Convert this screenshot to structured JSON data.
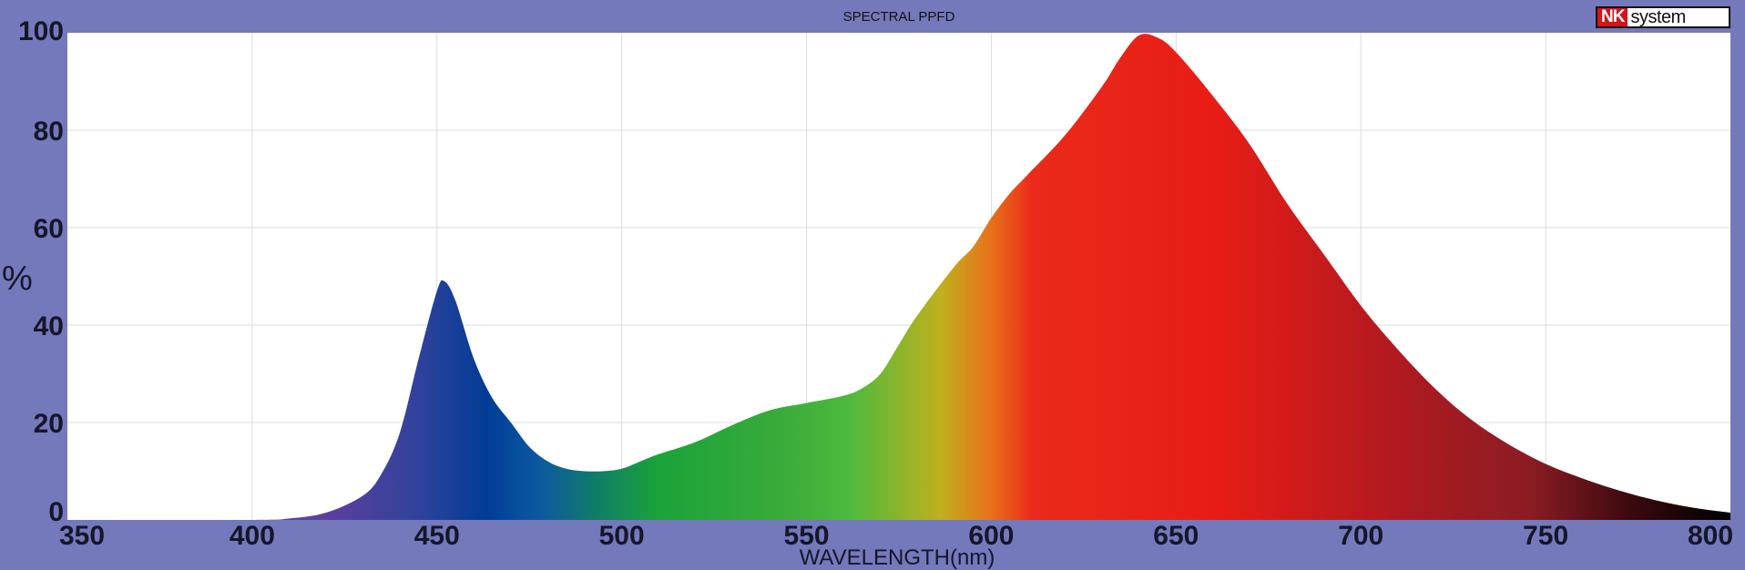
{
  "chart_data": {
    "type": "area",
    "title": "SPECTRAL PPFD",
    "xlabel": "WAVELENGTH(nm)",
    "ylabel": "%",
    "xlim": [
      350,
      800
    ],
    "ylim": [
      0,
      100
    ],
    "x_ticks": [
      "350",
      "400",
      "450",
      "500",
      "550",
      "600",
      "650",
      "700",
      "750",
      "800"
    ],
    "y_ticks": [
      "0",
      "20",
      "40",
      "60",
      "80",
      "100"
    ],
    "grid": true,
    "fill": "visible-spectrum gradient",
    "series": [
      {
        "x": [
          350,
          400,
          410,
          420,
          430,
          435,
          440,
          445,
          450,
          452,
          455,
          460,
          465,
          470,
          475,
          480,
          485,
          490,
          495,
          500,
          505,
          510,
          520,
          530,
          540,
          550,
          560,
          565,
          570,
          575,
          580,
          590,
          595,
          600,
          605,
          610,
          620,
          630,
          635,
          640,
          645,
          650,
          660,
          670,
          680,
          690,
          700,
          710,
          720,
          730,
          740,
          750,
          760,
          770,
          780,
          790,
          800
        ],
        "y": [
          0,
          0,
          0.3,
          1.5,
          5,
          9.5,
          18,
          33,
          47,
          49,
          45,
          33,
          25,
          20,
          15,
          12,
          10.5,
          10,
          10,
          10.5,
          12,
          13.5,
          16,
          19.5,
          22.5,
          24,
          25.5,
          27,
          30,
          36,
          42,
          52,
          56,
          62,
          67,
          71,
          79,
          89,
          95,
          99.5,
          99,
          96,
          87,
          77,
          65,
          54.5,
          44,
          35,
          27,
          20.5,
          15.5,
          11.5,
          8.5,
          6,
          4,
          2.5,
          1.5
        ]
      }
    ]
  },
  "logo": {
    "brand": "NK",
    "suffix": "system"
  },
  "colors": {
    "background": "#7379ba",
    "plot_area": "#ffffff",
    "spectrum_stops": [
      "#5a3f9e",
      "#31429c",
      "#013c96",
      "#0d5aa0",
      "#0f7a6a",
      "#1aa33a",
      "#3aab3b",
      "#4cba3d",
      "#bfb01e",
      "#e7721a",
      "#ea2a1a",
      "#e81c16",
      "#b01a20",
      "#8a1c22",
      "#3a0a0e",
      "#000000"
    ]
  }
}
